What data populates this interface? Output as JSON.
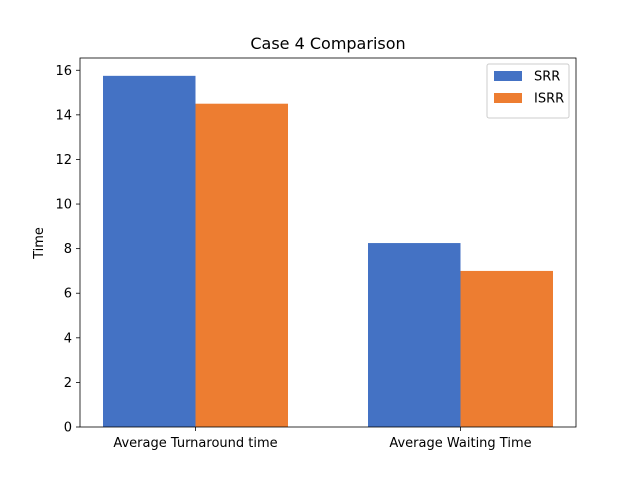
{
  "chart_data": {
    "type": "bar",
    "title": "Case 4 Comparison",
    "xlabel": "",
    "ylabel": "Time",
    "categories": [
      "Average Turnaround time",
      "Average Waiting Time"
    ],
    "series": [
      {
        "name": "SRR",
        "values": [
          15.75,
          8.25
        ],
        "color": "#4472c4"
      },
      {
        "name": "ISRR",
        "values": [
          14.5,
          7.0
        ],
        "color": "#ed7d31"
      }
    ],
    "ylim": [
      0,
      16.55
    ],
    "yticks": [
      0,
      2,
      4,
      6,
      8,
      10,
      12,
      14,
      16
    ],
    "grid": false,
    "legend_position": "top-right"
  }
}
